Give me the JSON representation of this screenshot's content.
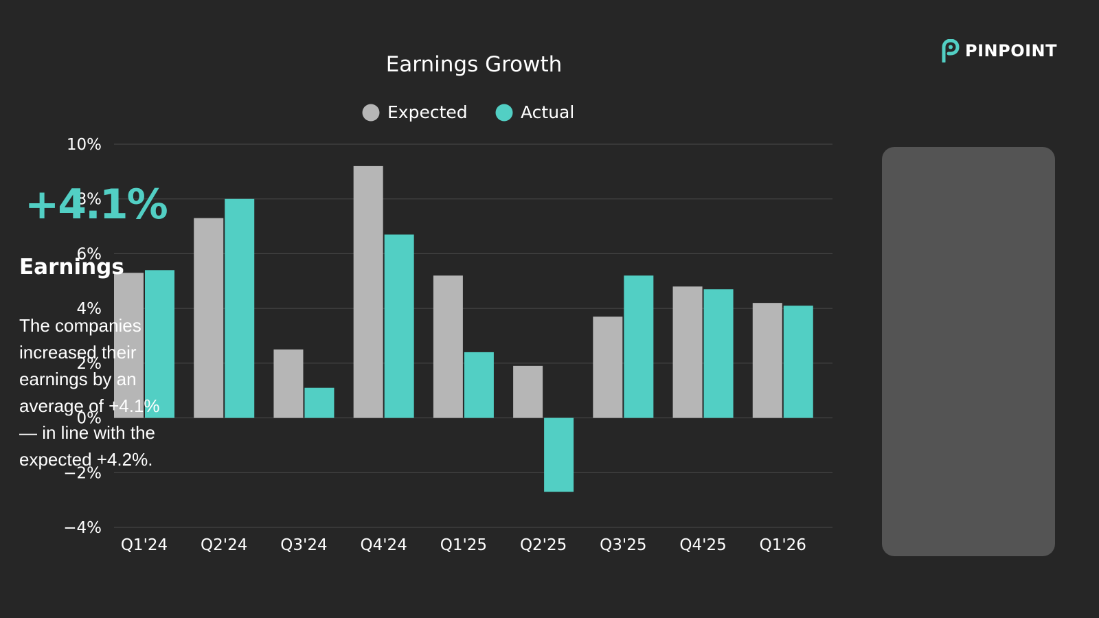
{
  "brand": {
    "name": "PINPOINT"
  },
  "colors": {
    "background": "#262626",
    "expected": "#b6b6b6",
    "actual": "#52cfc4",
    "grid": "#4a4a4a",
    "card": "#545454"
  },
  "card": {
    "value": "+4.1%",
    "title": "Earnings",
    "text": "The companies increased their earnings by an average of +4.1% — in line with the expected +4.2%."
  },
  "chart_data": {
    "type": "bar",
    "title": "Earnings Growth",
    "xlabel": "",
    "ylabel": "",
    "categories": [
      "Q1'24",
      "Q2'24",
      "Q3'24",
      "Q4'24",
      "Q1'25",
      "Q2'25",
      "Q3'25",
      "Q4'25",
      "Q1'26"
    ],
    "series": [
      {
        "name": "Expected",
        "color": "#b6b6b6",
        "values": [
          5.3,
          7.3,
          2.5,
          9.2,
          5.2,
          1.9,
          3.7,
          4.8,
          4.2
        ]
      },
      {
        "name": "Actual",
        "color": "#52cfc4",
        "values": [
          5.4,
          8.0,
          1.1,
          6.7,
          2.4,
          -2.7,
          5.2,
          4.7,
          4.1
        ]
      }
    ],
    "ylim": [
      -4,
      10
    ],
    "yticks": [
      10,
      8,
      6,
      4,
      2,
      0,
      -2,
      -4
    ],
    "ytick_labels": [
      "10%",
      "8%",
      "6%",
      "4%",
      "2%",
      "0%",
      "−2%",
      "−4%"
    ],
    "grid": true,
    "legend": "top-center"
  }
}
